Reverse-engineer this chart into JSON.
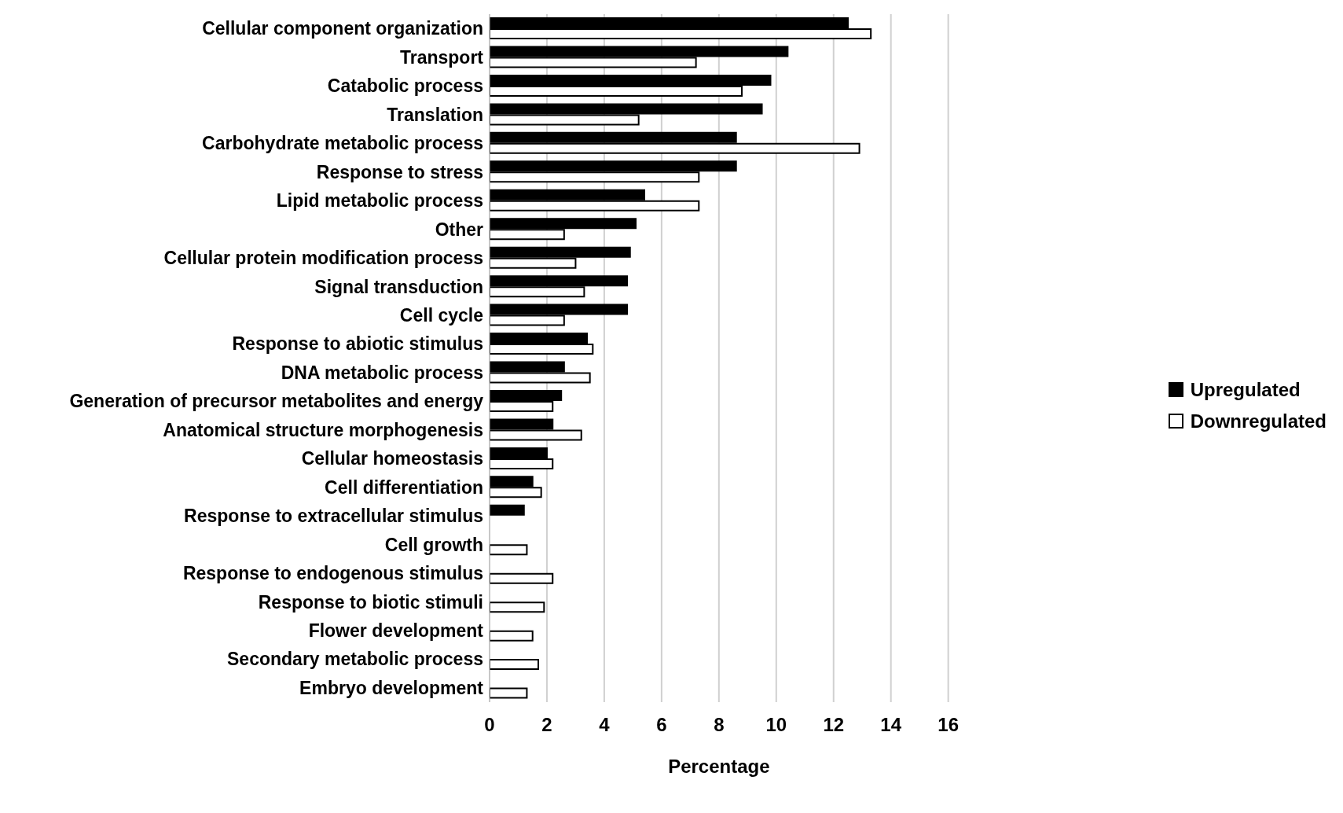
{
  "chart_data": {
    "type": "bar",
    "orientation": "horizontal",
    "xlabel": "Percentage",
    "categories": [
      "Cellular component organization",
      "Transport",
      "Catabolic process",
      "Translation",
      "Carbohydrate metabolic process",
      "Response to stress",
      "Lipid metabolic process",
      "Other",
      "Cellular protein modification process",
      "Signal transduction",
      "Cell cycle",
      "Response to abiotic stimulus",
      "DNA metabolic process",
      "Generation of precursor metabolites and energy",
      "Anatomical structure morphogenesis",
      "Cellular homeostasis",
      "Cell differentiation",
      "Response to extracellular stimulus",
      "Cell growth",
      "Response to endogenous stimulus",
      "Response to biotic stimuli",
      "Flower development",
      "Secondary metabolic process",
      "Embryo development"
    ],
    "series": [
      {
        "name": "Upregulated",
        "color": "#000000",
        "values": [
          12.5,
          10.4,
          9.8,
          9.5,
          8.6,
          8.6,
          5.4,
          5.1,
          4.9,
          4.8,
          4.8,
          3.4,
          2.6,
          2.5,
          2.2,
          2.0,
          1.5,
          1.2,
          null,
          null,
          null,
          null,
          null,
          null
        ]
      },
      {
        "name": "Downregulated",
        "color": "#ffffff",
        "values": [
          13.3,
          7.2,
          8.8,
          5.2,
          12.9,
          7.3,
          7.3,
          2.6,
          3.0,
          3.3,
          2.6,
          3.6,
          3.5,
          2.2,
          3.2,
          2.2,
          1.8,
          null,
          1.3,
          2.2,
          1.9,
          1.5,
          1.7,
          1.3
        ]
      }
    ],
    "xlim": [
      0,
      16
    ],
    "xticks": [
      0,
      2,
      4,
      6,
      8,
      10,
      12,
      14,
      16
    ],
    "grid": "x",
    "legend": "right"
  }
}
